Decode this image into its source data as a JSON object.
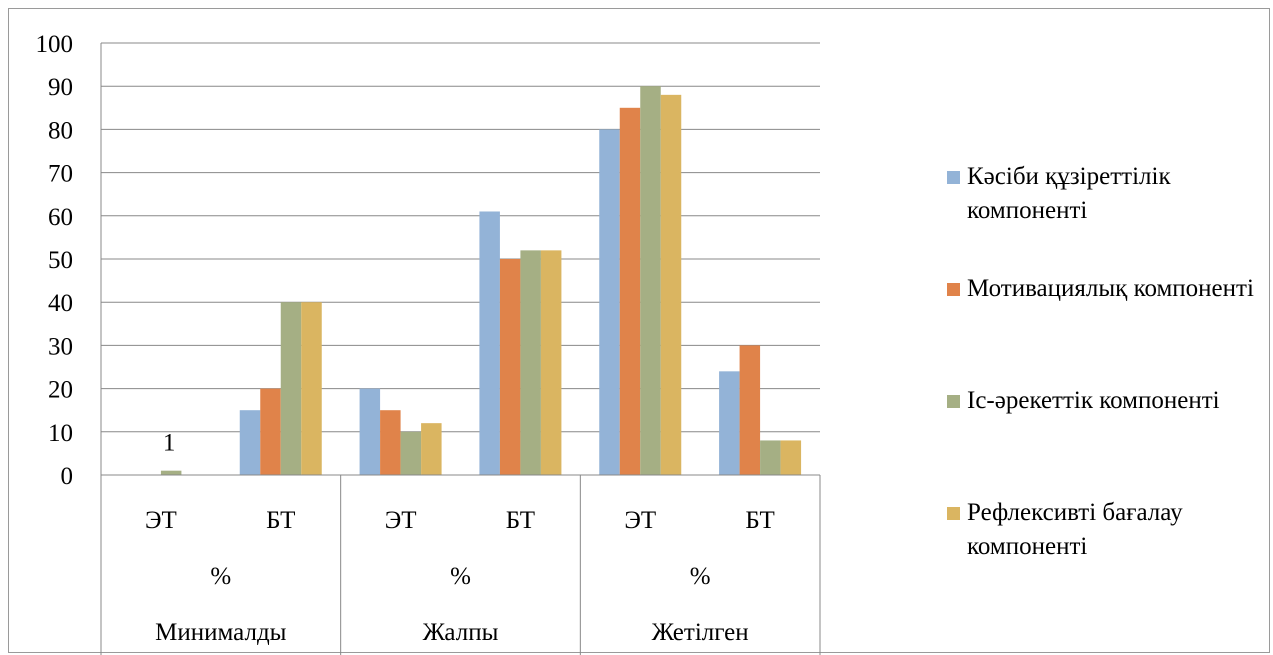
{
  "chart_data": {
    "type": "bar",
    "ylim": [
      0,
      100
    ],
    "yticks": [
      0,
      10,
      20,
      30,
      40,
      50,
      60,
      70,
      80,
      90,
      100
    ],
    "groups": [
      {
        "label": "Минималды",
        "pct": "%",
        "categories": [
          "ЭТ",
          "БТ"
        ]
      },
      {
        "label": "Жалпы",
        "pct": "%",
        "categories": [
          "ЭТ",
          "БТ"
        ]
      },
      {
        "label": "Жетілген",
        "pct": "%",
        "categories": [
          "ЭТ",
          "БТ"
        ]
      }
    ],
    "series": [
      {
        "name": "Кәсіби құзіреттілік компоненті",
        "color": "#93b3d7",
        "values": [
          0,
          15,
          20,
          61,
          80,
          24
        ]
      },
      {
        "name": "Мотивациялық компоненті",
        "color": "#e0834a",
        "values": [
          0,
          20,
          15,
          50,
          85,
          30
        ]
      },
      {
        "name": "Іс-әрекеттік компоненті",
        "color": "#a5af84",
        "values": [
          1,
          40,
          10,
          52,
          90,
          8
        ]
      },
      {
        "name": "Рефлексивті бағалау компоненті",
        "color": "#dab561",
        "values": [
          0,
          40,
          12,
          52,
          88,
          8
        ]
      }
    ],
    "annotations": [
      {
        "text": "1",
        "series": 2,
        "index": 0
      }
    ],
    "grid": true,
    "legend_position": "right"
  }
}
